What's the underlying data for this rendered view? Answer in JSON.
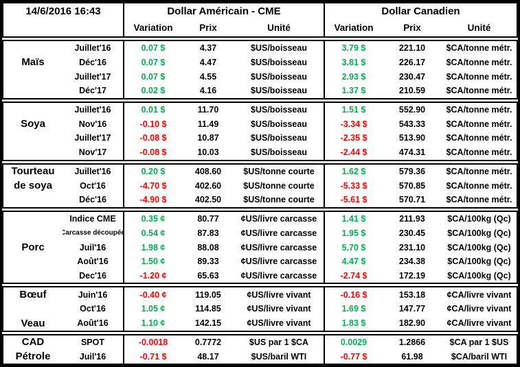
{
  "timestamp": "14/6/2016 16:43",
  "colors": {
    "positive": "#00B050",
    "negative": "#FF0000"
  },
  "header": {
    "usd_title": "Dollar Américain - CME",
    "cad_title": "Dollar Canadien",
    "variation": "Variation",
    "prix": "Prix",
    "unite": "Unité"
  },
  "groups": [
    {
      "name": "Maïs",
      "rows": [
        {
          "commodity": "",
          "month": "Juillet'16",
          "us_var": "0.07 $",
          "us_dir": "pos",
          "us_prix": "4.37",
          "us_unit": "$US/boisseau",
          "ca_var": "3.79 $",
          "ca_dir": "pos",
          "ca_prix": "221.10",
          "ca_unit": "$CA/tonne métr."
        },
        {
          "commodity": "Maïs",
          "month": "Déc'16",
          "us_var": "0.07 $",
          "us_dir": "pos",
          "us_prix": "4.47",
          "us_unit": "$US/boisseau",
          "ca_var": "3.81 $",
          "ca_dir": "pos",
          "ca_prix": "226.17",
          "ca_unit": "$CA/tonne métr."
        },
        {
          "commodity": "",
          "month": "Juillet'17",
          "us_var": "0.07 $",
          "us_dir": "pos",
          "us_prix": "4.55",
          "us_unit": "$US/boisseau",
          "ca_var": "2.93 $",
          "ca_dir": "pos",
          "ca_prix": "230.47",
          "ca_unit": "$CA/tonne métr."
        },
        {
          "commodity": "",
          "month": "Déc'17",
          "us_var": "0.02 $",
          "us_dir": "pos",
          "us_prix": "4.16",
          "us_unit": "$US/boisseau",
          "ca_var": "1.37 $",
          "ca_dir": "pos",
          "ca_prix": "210.59",
          "ca_unit": "$CA/tonne métr."
        }
      ]
    },
    {
      "name": "Soya",
      "rows": [
        {
          "commodity": "",
          "month": "Juillet'16",
          "us_var": "0.01 $",
          "us_dir": "pos",
          "us_prix": "11.70",
          "us_unit": "$US/boisseau",
          "ca_var": "1.51 $",
          "ca_dir": "pos",
          "ca_prix": "552.90",
          "ca_unit": "$CA/tonne métr."
        },
        {
          "commodity": "Soya",
          "month": "Nov'16",
          "us_var": "-0.10 $",
          "us_dir": "neg",
          "us_prix": "11.49",
          "us_unit": "$US/boisseau",
          "ca_var": "-3.34 $",
          "ca_dir": "neg",
          "ca_prix": "543.33",
          "ca_unit": "$CA/tonne métr."
        },
        {
          "commodity": "",
          "month": "Juillet'17",
          "us_var": "-0.08 $",
          "us_dir": "neg",
          "us_prix": "10.87",
          "us_unit": "$US/boisseau",
          "ca_var": "-2.35 $",
          "ca_dir": "neg",
          "ca_prix": "513.90",
          "ca_unit": "$CA/tonne métr."
        },
        {
          "commodity": "",
          "month": "Nov'17",
          "us_var": "-0.08 $",
          "us_dir": "neg",
          "us_prix": "10.03",
          "us_unit": "$US/boisseau",
          "ca_var": "-2.44 $",
          "ca_dir": "neg",
          "ca_prix": "474.31",
          "ca_unit": "$CA/tonne métr."
        }
      ]
    },
    {
      "name": "Tourteau de soya",
      "rows": [
        {
          "commodity": "Tourteau",
          "month": "Juillet'16",
          "us_var": "0.20 $",
          "us_dir": "pos",
          "us_prix": "408.60",
          "us_unit": "$US/tonne courte",
          "ca_var": "1.62 $",
          "ca_dir": "pos",
          "ca_prix": "579.36",
          "ca_unit": "$CA/tonne métr."
        },
        {
          "commodity": "de soya",
          "month": "Oct'16",
          "us_var": "-4.70 $",
          "us_dir": "neg",
          "us_prix": "402.60",
          "us_unit": "$US/tonne courte",
          "ca_var": "-5.33 $",
          "ca_dir": "neg",
          "ca_prix": "570.85",
          "ca_unit": "$CA/tonne métr."
        },
        {
          "commodity": "",
          "month": "Déc'16",
          "us_var": "-4.90 $",
          "us_dir": "neg",
          "us_prix": "402.50",
          "us_unit": "$US/tonne courte",
          "ca_var": "-5.61 $",
          "ca_dir": "neg",
          "ca_prix": "570.71",
          "ca_unit": "$CA/tonne métr."
        }
      ]
    },
    {
      "name": "Porc",
      "rows": [
        {
          "commodity": "",
          "month": "Indice CME",
          "us_var": "0.35 ¢",
          "us_dir": "pos",
          "us_prix": "80.77",
          "us_unit": "¢US/livre carcasse",
          "ca_var": "1.41 $",
          "ca_dir": "pos",
          "ca_prix": "211.93",
          "ca_unit": "$CA/100kg (Qc)"
        },
        {
          "commodity": "",
          "month": "Carcasse découpée",
          "us_var": "0.54 ¢",
          "us_dir": "pos",
          "us_prix": "87.83",
          "us_unit": "¢US/livre carcasse",
          "ca_var": "1.95 $",
          "ca_dir": "pos",
          "ca_prix": "230.45",
          "ca_unit": "$CA/100kg (Qc)"
        },
        {
          "commodity": "Porc",
          "month": "Juil'16",
          "us_var": "1.98 ¢",
          "us_dir": "pos",
          "us_prix": "88.08",
          "us_unit": "¢US/livre carcasse",
          "ca_var": "5.70 $",
          "ca_dir": "pos",
          "ca_prix": "231.10",
          "ca_unit": "$CA/100kg (Qc)"
        },
        {
          "commodity": "",
          "month": "Août'16",
          "us_var": "1.50 ¢",
          "us_dir": "pos",
          "us_prix": "89.33",
          "us_unit": "¢US/livre carcasse",
          "ca_var": "4.47 $",
          "ca_dir": "pos",
          "ca_prix": "234.38",
          "ca_unit": "$CA/100kg (Qc)"
        },
        {
          "commodity": "",
          "month": "Dec'16",
          "us_var": "-1.20 ¢",
          "us_dir": "neg",
          "us_prix": "65.63",
          "us_unit": "¢US/livre carcasse",
          "ca_var": "-2.74 $",
          "ca_dir": "neg",
          "ca_prix": "172.19",
          "ca_unit": "$CA/100kg (Qc)"
        }
      ]
    },
    {
      "name": "Bœuf / Veau",
      "rows": [
        {
          "commodity": "Bœuf",
          "month": "Juin'16",
          "us_var": "-0.40 ¢",
          "us_dir": "neg",
          "us_prix": "119.05",
          "us_unit": "¢US/livre vivant",
          "ca_var": "-0.16 $",
          "ca_dir": "neg",
          "ca_prix": "153.18",
          "ca_unit": "¢CA/livre vivant"
        },
        {
          "commodity": "",
          "month": "Oct'16",
          "us_var": "1.05 ¢",
          "us_dir": "pos",
          "us_prix": "114.85",
          "us_unit": "¢US/livre vivant",
          "ca_var": "1.69 $",
          "ca_dir": "pos",
          "ca_prix": "147.77",
          "ca_unit": "¢CA/livre vivant"
        },
        {
          "commodity": "Veau",
          "month": "Août'16",
          "us_var": "1.10 ¢",
          "us_dir": "pos",
          "us_prix": "142.15",
          "us_unit": "¢US/livre vivant",
          "ca_var": "1.83 $",
          "ca_dir": "pos",
          "ca_prix": "182.90",
          "ca_unit": "¢CA/livre vivant"
        }
      ]
    },
    {
      "name": "CAD / Pétrole",
      "rows": [
        {
          "commodity": "CAD",
          "month": "SPOT",
          "us_var": "-0.0018",
          "us_dir": "neg",
          "us_prix": "0.7772",
          "us_unit": "$US par 1 $CA",
          "ca_var": "0.0029",
          "ca_dir": "pos",
          "ca_prix": "1.2866",
          "ca_unit": "$CA par 1 $US"
        },
        {
          "commodity": "Pétrole",
          "month": "Juil'16",
          "us_var": "-0.71 $",
          "us_dir": "neg",
          "us_prix": "48.17",
          "us_unit": "$US/baril WTI",
          "ca_var": "-0.77 $",
          "ca_dir": "neg",
          "ca_prix": "61.98",
          "ca_unit": "$CA/baril WTI"
        }
      ]
    }
  ]
}
